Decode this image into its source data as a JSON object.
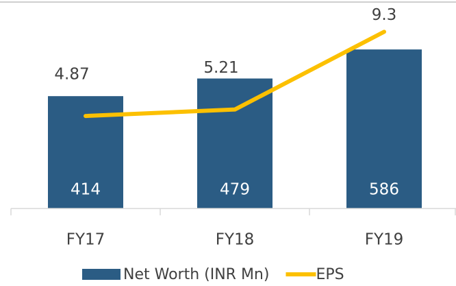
{
  "chart_data": {
    "type": "bar_line",
    "categories": [
      "FY17",
      "FY18",
      "FY19"
    ],
    "series": [
      {
        "name": "Net Worth (INR Mn)",
        "type": "bar",
        "color": "#2b5c84",
        "values": [
          414,
          479,
          586
        ]
      },
      {
        "name": "EPS",
        "type": "line",
        "axis": "y2",
        "color": "#fcc000",
        "values": [
          4.87,
          5.21,
          9.3
        ]
      }
    ],
    "ylim": [
      0,
      700
    ],
    "y2lim": [
      0,
      10
    ],
    "grid": false,
    "legend": "bottom"
  }
}
